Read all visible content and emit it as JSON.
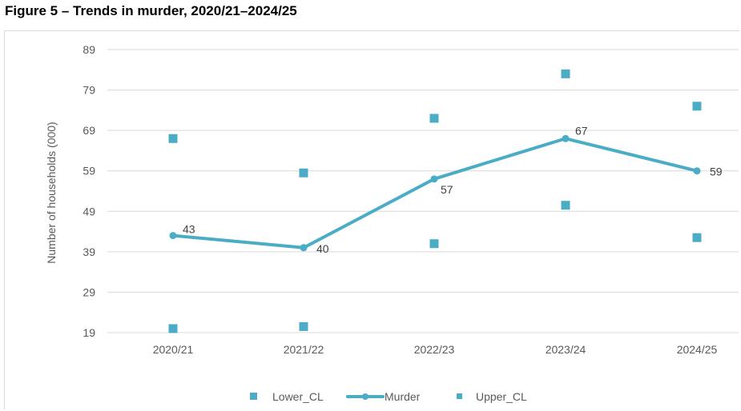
{
  "figure": {
    "title": "Figure 5 – Trends in murder, 2020/21–2024/25"
  },
  "colors": {
    "series": "#4bacc6",
    "grid": "#d9d9d9",
    "text": "#595959"
  },
  "chart_data": {
    "type": "line",
    "title": "Figure 5 – Trends in murder, 2020/21–2024/25",
    "xlabel": "",
    "ylabel": "Number of households (000)",
    "categories": [
      "2020/21",
      "2021/22",
      "2022/23",
      "2023/24",
      "2024/25"
    ],
    "y_ticks": [
      19,
      29,
      39,
      49,
      59,
      69,
      79,
      89
    ],
    "ylim": [
      19,
      89
    ],
    "grid": true,
    "legend_position": "bottom",
    "series": [
      {
        "name": "Lower_CL",
        "kind": "marker",
        "values": [
          20,
          20.5,
          41,
          50.5,
          42.5
        ]
      },
      {
        "name": "Murder",
        "kind": "line",
        "values": [
          43,
          40,
          57,
          67,
          59
        ],
        "labels": [
          "43",
          "40",
          "57",
          "67",
          "59"
        ]
      },
      {
        "name": "Upper_CL",
        "kind": "marker",
        "values": [
          67,
          58.5,
          72,
          83,
          75
        ]
      }
    ]
  }
}
